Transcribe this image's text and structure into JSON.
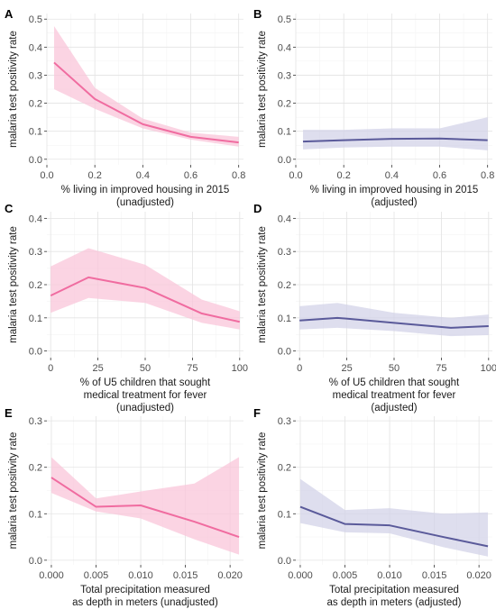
{
  "chart_data": [
    {
      "panel": "A",
      "type": "line",
      "color": "#f06ca0",
      "band_color": "#f9c6da",
      "ylabel": "malaria test positivity rate",
      "xlabel": [
        "% living in improved housing in 2015",
        "(unadjusted)"
      ],
      "xlim": [
        0,
        0.82
      ],
      "ylim": [
        -0.02,
        0.52
      ],
      "xticks": [
        0.0,
        0.2,
        0.4,
        0.6,
        0.8
      ],
      "xtick_labels": [
        "0.0",
        "0.2",
        "0.4",
        "0.6",
        "0.8"
      ],
      "yticks": [
        0.0,
        0.1,
        0.2,
        0.3,
        0.4,
        0.5
      ],
      "ytick_labels": [
        "0.0",
        "0.1",
        "0.2",
        "0.3",
        "0.4",
        "0.5"
      ],
      "grid": true,
      "x": [
        0.03,
        0.2,
        0.4,
        0.6,
        0.8
      ],
      "y": [
        0.345,
        0.215,
        0.125,
        0.08,
        0.06
      ],
      "lower": [
        0.25,
        0.18,
        0.11,
        0.07,
        0.045
      ],
      "upper": [
        0.475,
        0.255,
        0.145,
        0.095,
        0.08
      ]
    },
    {
      "panel": "B",
      "type": "line",
      "color": "#5a5a9a",
      "band_color": "#d3d3e8",
      "ylabel": "malaria test positivity rate",
      "xlabel": [
        "% living in improved housing in 2015",
        "(adjusted)"
      ],
      "xlim": [
        0,
        0.82
      ],
      "ylim": [
        -0.02,
        0.52
      ],
      "xticks": [
        0.0,
        0.2,
        0.4,
        0.6,
        0.8
      ],
      "xtick_labels": [
        "0.0",
        "0.2",
        "0.4",
        "0.6",
        "0.8"
      ],
      "yticks": [
        0.0,
        0.1,
        0.2,
        0.3,
        0.4,
        0.5
      ],
      "ytick_labels": [
        "0.0",
        "0.1",
        "0.2",
        "0.3",
        "0.4",
        "0.5"
      ],
      "grid": true,
      "x": [
        0.03,
        0.2,
        0.4,
        0.6,
        0.8
      ],
      "y": [
        0.063,
        0.068,
        0.073,
        0.074,
        0.068
      ],
      "lower": [
        0.035,
        0.042,
        0.045,
        0.045,
        0.032
      ],
      "upper": [
        0.105,
        0.105,
        0.11,
        0.11,
        0.15
      ]
    },
    {
      "panel": "C",
      "type": "line",
      "color": "#f06ca0",
      "band_color": "#f9c6da",
      "ylabel": "malaria test positivity rate",
      "xlabel": [
        "% of U5 children that sought",
        "medical treatment for fever",
        "(unadjusted)"
      ],
      "xlim": [
        -2,
        102
      ],
      "ylim": [
        -0.02,
        0.42
      ],
      "xticks": [
        0,
        25,
        50,
        75,
        100
      ],
      "xtick_labels": [
        "0",
        "25",
        "50",
        "75",
        "100"
      ],
      "yticks": [
        0.0,
        0.1,
        0.2,
        0.3,
        0.4
      ],
      "ytick_labels": [
        "0.0",
        "0.1",
        "0.2",
        "0.3",
        "0.4"
      ],
      "grid": true,
      "x": [
        0,
        20,
        50,
        80,
        100
      ],
      "y": [
        0.167,
        0.222,
        0.19,
        0.113,
        0.088
      ],
      "lower": [
        0.115,
        0.16,
        0.145,
        0.085,
        0.065
      ],
      "upper": [
        0.255,
        0.31,
        0.26,
        0.155,
        0.12
      ]
    },
    {
      "panel": "D",
      "type": "line",
      "color": "#5a5a9a",
      "band_color": "#d3d3e8",
      "ylabel": "malaria test positivity rate",
      "xlabel": [
        "% of U5 children that sought",
        "medical treatment for fever",
        "(adjusted)"
      ],
      "xlim": [
        -2,
        102
      ],
      "ylim": [
        -0.02,
        0.42
      ],
      "xticks": [
        0,
        25,
        50,
        75,
        100
      ],
      "xtick_labels": [
        "0",
        "25",
        "50",
        "75",
        "100"
      ],
      "yticks": [
        0.0,
        0.1,
        0.2,
        0.3,
        0.4
      ],
      "ytick_labels": [
        "0.0",
        "0.1",
        "0.2",
        "0.3",
        "0.4"
      ],
      "grid": true,
      "x": [
        0,
        20,
        50,
        80,
        100
      ],
      "y": [
        0.092,
        0.1,
        0.085,
        0.07,
        0.075
      ],
      "lower": [
        0.065,
        0.07,
        0.06,
        0.045,
        0.048
      ],
      "upper": [
        0.135,
        0.145,
        0.115,
        0.1,
        0.11
      ]
    },
    {
      "panel": "E",
      "type": "line",
      "color": "#f06ca0",
      "band_color": "#f9c6da",
      "ylabel": "malaria test positivity rate",
      "xlabel": [
        "Total precipitation measured",
        "as depth in meters (unadjusted)"
      ],
      "xlim": [
        -0.0005,
        0.0215
      ],
      "ylim": [
        -0.01,
        0.31
      ],
      "xticks": [
        0.0,
        0.005,
        0.01,
        0.015,
        0.02
      ],
      "xtick_labels": [
        "0.000",
        "0.005",
        "0.010",
        "0.015",
        "0.020"
      ],
      "yticks": [
        0.0,
        0.1,
        0.2,
        0.3
      ],
      "ytick_labels": [
        "0.0",
        "0.1",
        "0.2",
        "0.3"
      ],
      "grid": true,
      "x": [
        0.0,
        0.005,
        0.01,
        0.016,
        0.021
      ],
      "y": [
        0.178,
        0.115,
        0.118,
        0.083,
        0.05
      ],
      "lower": [
        0.145,
        0.105,
        0.09,
        0.045,
        0.012
      ],
      "upper": [
        0.222,
        0.133,
        0.148,
        0.165,
        0.222
      ]
    },
    {
      "panel": "F",
      "type": "line",
      "color": "#5a5a9a",
      "band_color": "#d3d3e8",
      "ylabel": "malaria test positivity rate",
      "xlabel": [
        "Total precipitation measured",
        "as depth in meters (adjusted)"
      ],
      "xlim": [
        -0.0005,
        0.0215
      ],
      "ylim": [
        -0.01,
        0.31
      ],
      "xticks": [
        0.0,
        0.005,
        0.01,
        0.015,
        0.02
      ],
      "xtick_labels": [
        "0.000",
        "0.005",
        "0.010",
        "0.015",
        "0.020"
      ],
      "yticks": [
        0.0,
        0.1,
        0.2,
        0.3
      ],
      "ytick_labels": [
        "0.0",
        "0.1",
        "0.2",
        "0.3"
      ],
      "grid": true,
      "x": [
        0.0,
        0.005,
        0.01,
        0.016,
        0.021
      ],
      "y": [
        0.115,
        0.078,
        0.075,
        0.05,
        0.03
      ],
      "lower": [
        0.08,
        0.06,
        0.058,
        0.028,
        0.008
      ],
      "upper": [
        0.175,
        0.108,
        0.112,
        0.1,
        0.103
      ]
    }
  ]
}
